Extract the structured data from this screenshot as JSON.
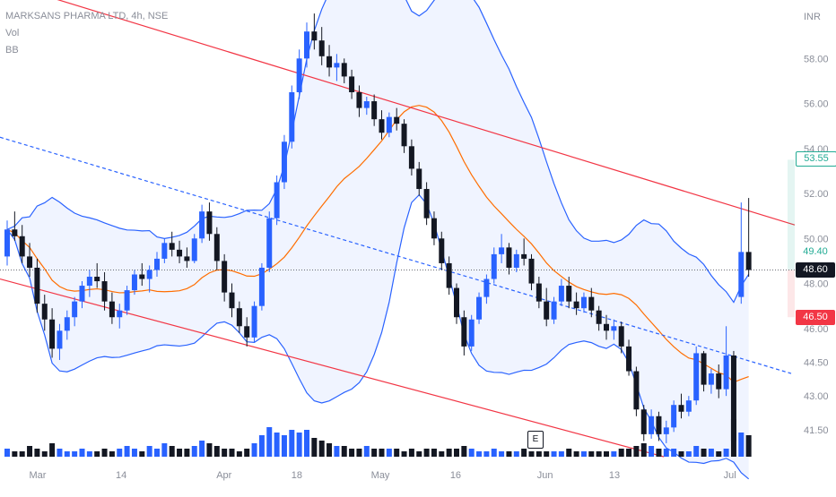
{
  "header": {
    "symbol_line": "MARKSANS PHARMA LTD, 4h, NSE",
    "indicator_vol": "Vol",
    "indicator_bb": "BB"
  },
  "price_axis": {
    "currency": "INR",
    "ticks": [
      "58.00",
      "56.00",
      "54.00",
      "52.00",
      "50.00",
      "48.00",
      "46.00",
      "44.50",
      "43.00",
      "41.50"
    ]
  },
  "time_axis": {
    "ticks": [
      "Mar",
      "14",
      "Apr",
      "18",
      "May",
      "16",
      "Jun",
      "13",
      "Jul"
    ]
  },
  "price_badges": {
    "upper": {
      "label": "53.55",
      "color": "#22ab94"
    },
    "mid": {
      "label": "49.40",
      "color": "#22ab94"
    },
    "current": {
      "label": "48.60",
      "color": "#131722"
    },
    "lower": {
      "label": "46.50",
      "color": "#f23645"
    }
  },
  "event_marker": {
    "label": "E"
  },
  "colors": {
    "bull": "#2962ff",
    "bear": "#131722",
    "channel": "#f23645",
    "bb_band": "#2962ff",
    "bb_basis": "#ff6d00",
    "midline": "#2962ff"
  },
  "chart_data": {
    "type": "candlestick",
    "title": "MARKSANS PHARMA LTD, 4h, NSE",
    "ylim": [
      40.3,
      60.6
    ],
    "x_ticks": [
      "Mar",
      "14",
      "Apr",
      "18",
      "May",
      "16",
      "Jun",
      "13",
      "Jul"
    ],
    "last_price": 48.6,
    "series": [
      {
        "name": "candles",
        "values": [
          [
            49.2,
            50.8,
            48.8,
            50.4
          ],
          [
            50.4,
            51.2,
            49.9,
            50.1
          ],
          [
            50.1,
            50.6,
            48.9,
            49.2
          ],
          [
            49.2,
            49.8,
            48.3,
            48.7
          ],
          [
            48.7,
            49.1,
            46.7,
            47.1
          ],
          [
            47.1,
            47.5,
            45.9,
            46.4
          ],
          [
            46.4,
            46.9,
            44.7,
            45.1
          ],
          [
            45.1,
            46.2,
            44.6,
            45.9
          ],
          [
            45.9,
            46.8,
            45.5,
            46.5
          ],
          [
            46.5,
            47.4,
            46.1,
            47.2
          ],
          [
            47.2,
            48.1,
            46.9,
            47.9
          ],
          [
            47.9,
            48.6,
            47.4,
            48.3
          ],
          [
            48.3,
            48.9,
            47.8,
            48.1
          ],
          [
            48.1,
            48.5,
            46.8,
            47.2
          ],
          [
            47.2,
            47.6,
            46.2,
            46.5
          ],
          [
            46.5,
            47.1,
            46.0,
            46.8
          ],
          [
            46.8,
            47.9,
            46.6,
            47.7
          ],
          [
            47.7,
            48.6,
            47.5,
            48.4
          ],
          [
            48.4,
            48.9,
            47.9,
            48.2
          ],
          [
            48.2,
            48.8,
            47.6,
            48.6
          ],
          [
            48.6,
            49.4,
            48.3,
            49.1
          ],
          [
            49.1,
            50.0,
            48.9,
            49.8
          ],
          [
            49.8,
            50.3,
            49.2,
            49.5
          ],
          [
            49.5,
            49.9,
            48.9,
            49.2
          ],
          [
            49.2,
            49.6,
            48.7,
            49.0
          ],
          [
            49.0,
            50.2,
            48.9,
            50.0
          ],
          [
            50.0,
            51.5,
            49.8,
            51.2
          ],
          [
            51.2,
            51.6,
            49.9,
            50.2
          ],
          [
            50.2,
            50.5,
            48.6,
            49.0
          ],
          [
            49.0,
            49.3,
            47.2,
            47.6
          ],
          [
            47.6,
            48.0,
            46.5,
            46.9
          ],
          [
            46.9,
            47.2,
            45.8,
            46.1
          ],
          [
            46.1,
            46.5,
            45.2,
            45.6
          ],
          [
            45.6,
            47.2,
            45.4,
            47.0
          ],
          [
            47.0,
            48.9,
            46.8,
            48.7
          ],
          [
            48.7,
            51.2,
            48.5,
            50.9
          ],
          [
            50.9,
            52.8,
            50.6,
            52.5
          ],
          [
            52.5,
            54.6,
            52.2,
            54.3
          ],
          [
            54.3,
            56.8,
            54.0,
            56.5
          ],
          [
            56.5,
            58.4,
            56.2,
            58.0
          ],
          [
            58.0,
            59.6,
            57.6,
            59.2
          ],
          [
            59.2,
            60.0,
            58.4,
            58.8
          ],
          [
            58.8,
            59.4,
            57.7,
            58.1
          ],
          [
            58.1,
            58.6,
            57.2,
            57.6
          ],
          [
            57.6,
            58.2,
            57.0,
            57.8
          ],
          [
            57.8,
            58.0,
            56.9,
            57.2
          ],
          [
            57.2,
            57.5,
            56.2,
            56.5
          ],
          [
            56.5,
            56.8,
            55.4,
            55.8
          ],
          [
            55.8,
            56.3,
            55.5,
            56.1
          ],
          [
            56.1,
            56.4,
            55.0,
            55.3
          ],
          [
            55.3,
            55.7,
            54.4,
            54.7
          ],
          [
            54.7,
            55.6,
            54.5,
            55.4
          ],
          [
            55.4,
            55.8,
            54.8,
            55.1
          ],
          [
            55.1,
            55.3,
            53.8,
            54.1
          ],
          [
            54.1,
            54.4,
            52.8,
            53.1
          ],
          [
            53.1,
            53.4,
            51.9,
            52.2
          ],
          [
            52.2,
            52.5,
            50.6,
            50.9
          ],
          [
            50.9,
            51.2,
            49.7,
            50.0
          ],
          [
            50.0,
            50.3,
            48.6,
            48.9
          ],
          [
            48.9,
            49.2,
            47.5,
            47.8
          ],
          [
            47.8,
            48.0,
            46.2,
            46.5
          ],
          [
            46.5,
            46.8,
            44.8,
            45.2
          ],
          [
            45.2,
            46.6,
            45.0,
            46.4
          ],
          [
            46.4,
            47.6,
            46.2,
            47.4
          ],
          [
            47.4,
            48.4,
            47.1,
            48.2
          ],
          [
            48.2,
            49.6,
            48.0,
            49.3
          ],
          [
            49.3,
            50.2,
            48.9,
            49.6
          ],
          [
            49.6,
            49.8,
            48.4,
            48.7
          ],
          [
            48.7,
            49.5,
            48.5,
            49.3
          ],
          [
            49.3,
            50.0,
            48.8,
            49.1
          ],
          [
            49.1,
            49.3,
            47.7,
            48.0
          ],
          [
            48.0,
            48.3,
            46.9,
            47.2
          ],
          [
            47.2,
            47.8,
            46.1,
            46.4
          ],
          [
            46.4,
            47.4,
            46.2,
            47.2
          ],
          [
            47.2,
            48.2,
            47.0,
            47.9
          ],
          [
            47.9,
            48.3,
            46.9,
            47.2
          ],
          [
            47.2,
            47.6,
            46.6,
            46.9
          ],
          [
            46.9,
            47.6,
            46.7,
            47.4
          ],
          [
            47.4,
            47.8,
            46.5,
            46.8
          ],
          [
            46.8,
            47.0,
            45.9,
            46.2
          ],
          [
            46.2,
            46.6,
            45.5,
            45.9
          ],
          [
            45.9,
            46.4,
            45.5,
            46.1
          ],
          [
            46.1,
            46.3,
            44.9,
            45.2
          ],
          [
            45.2,
            45.5,
            43.9,
            44.1
          ],
          [
            44.1,
            44.3,
            42.1,
            42.4
          ],
          [
            42.4,
            42.6,
            41.0,
            41.3
          ],
          [
            41.3,
            42.4,
            41.1,
            42.1
          ],
          [
            42.1,
            42.3,
            41.0,
            41.3
          ],
          [
            41.3,
            41.9,
            40.9,
            41.6
          ],
          [
            41.6,
            42.8,
            41.4,
            42.6
          ],
          [
            42.6,
            43.1,
            42.0,
            42.3
          ],
          [
            42.3,
            43.0,
            42.1,
            42.8
          ],
          [
            42.8,
            45.2,
            42.6,
            44.9
          ],
          [
            44.9,
            45.0,
            43.2,
            43.5
          ],
          [
            43.5,
            44.2,
            43.1,
            44.0
          ],
          [
            44.0,
            44.4,
            42.9,
            43.3
          ],
          [
            43.3,
            46.1,
            43.0,
            44.8
          ],
          [
            44.8,
            45.0,
            40.5,
            41.0
          ],
          [
            47.4,
            51.6,
            47.1,
            49.4
          ],
          [
            49.4,
            51.8,
            48.3,
            48.6
          ]
        ]
      },
      {
        "name": "Vol",
        "values": [
          3,
          2,
          2,
          4,
          3,
          2,
          5,
          3,
          2,
          2,
          3,
          2,
          2,
          3,
          2,
          3,
          4,
          3,
          2,
          4,
          3,
          5,
          4,
          3,
          3,
          4,
          6,
          5,
          4,
          3,
          3,
          2,
          3,
          5,
          8,
          11,
          9,
          8,
          10,
          9,
          10,
          7,
          6,
          5,
          4,
          4,
          3,
          3,
          4,
          3,
          3,
          3,
          3,
          2,
          3,
          2,
          3,
          3,
          2,
          3,
          3,
          4,
          3,
          2,
          2,
          3,
          2,
          2,
          2,
          3,
          2,
          2,
          2,
          2,
          2,
          3,
          2,
          2,
          2,
          2,
          2,
          2,
          3,
          3,
          4,
          5,
          4,
          3,
          3,
          3,
          2,
          2,
          4,
          3,
          3,
          2,
          3,
          14,
          9,
          8
        ]
      }
    ]
  }
}
